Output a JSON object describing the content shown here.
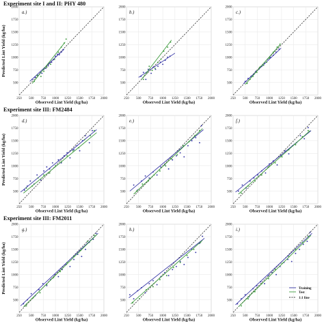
{
  "figure": {
    "row_titles": [
      "Experiment site I and II: PHY 480",
      "Experiment site III: FM2484",
      "Experiment site III: FM2011"
    ],
    "xlabel": "Observed Lint Yield (kg/ha)",
    "ylabel": "Predicted Lint Yield (kg/ha)",
    "legend": {
      "training": "Training",
      "test": "Test",
      "one_to_one": "1:1 line"
    }
  },
  "colors": {
    "training": "#3a3aa8",
    "test": "#3c9a3c",
    "one_to_one": "#333333",
    "grid": "#e6e6e6"
  },
  "chart_data": [
    {
      "type": "scatter",
      "label": "a.)",
      "xlim": [
        250,
        2000
      ],
      "ylim": [
        250,
        2000
      ],
      "ticks": [
        250,
        500,
        750,
        1000,
        1250,
        1500,
        1750,
        2000
      ],
      "series": [
        {
          "name": "Training",
          "x": [
            520,
            580,
            640,
            690,
            720,
            760,
            800,
            850,
            880,
            920,
            960,
            1000,
            1040,
            1080,
            1120,
            1160
          ],
          "y": [
            560,
            600,
            640,
            700,
            680,
            760,
            780,
            830,
            880,
            900,
            950,
            1020,
            1060,
            1050,
            1100,
            1150
          ],
          "fit": [
            [
              470,
              520
            ],
            [
              1180,
              1160
            ]
          ]
        },
        {
          "name": "Test",
          "x": [
            560,
            620,
            700,
            760,
            820,
            900,
            980,
            1060,
            1120,
            1180,
            1220
          ],
          "y": [
            520,
            640,
            620,
            720,
            800,
            860,
            960,
            1100,
            1200,
            1280,
            1360
          ],
          "fit": [
            [
              520,
              480
            ],
            [
              1200,
              1300
            ]
          ]
        }
      ]
    },
    {
      "type": "scatter",
      "label": "b.)",
      "xlim": [
        250,
        2000
      ],
      "ylim": [
        250,
        2000
      ],
      "ticks": [
        250,
        500,
        750,
        1000,
        1250,
        1500,
        1750,
        2000
      ],
      "series": [
        {
          "name": "Training",
          "x": [
            550,
            600,
            650,
            700,
            760,
            800,
            850,
            900,
            950,
            1000,
            1050,
            1100,
            1150
          ],
          "y": [
            620,
            700,
            560,
            760,
            680,
            800,
            760,
            820,
            900,
            860,
            940,
            1000,
            1020
          ],
          "fit": [
            [
              500,
              600
            ],
            [
              1250,
              1080
            ]
          ]
        },
        {
          "name": "Test",
          "x": [
            600,
            680,
            720,
            780,
            840,
            900,
            960,
            1020,
            1100,
            1160
          ],
          "y": [
            560,
            700,
            820,
            740,
            780,
            900,
            960,
            1120,
            1200,
            1300
          ],
          "fit": [
            [
              560,
              560
            ],
            [
              1180,
              1340
            ]
          ]
        }
      ]
    },
    {
      "type": "scatter",
      "label": "c.)",
      "xlim": [
        250,
        2000
      ],
      "ylim": [
        250,
        2000
      ],
      "ticks": [
        250,
        500,
        750,
        1000,
        1250,
        1500,
        1750,
        2000
      ],
      "series": [
        {
          "name": "Training",
          "x": [
            500,
            560,
            620,
            680,
            720,
            780,
            840,
            900,
            960,
            1020,
            1080,
            1140,
            1200
          ],
          "y": [
            520,
            580,
            620,
            660,
            720,
            760,
            820,
            880,
            960,
            1000,
            1040,
            1100,
            1160
          ],
          "fit": [
            [
              460,
              470
            ],
            [
              1240,
              1180
            ]
          ]
        },
        {
          "name": "Test",
          "x": [
            540,
            600,
            660,
            740,
            800,
            880,
            940,
            1000,
            1080,
            1160,
            1220
          ],
          "y": [
            480,
            560,
            620,
            700,
            800,
            840,
            900,
            980,
            1100,
            1200,
            1260
          ],
          "fit": [
            [
              500,
              460
            ],
            [
              1220,
              1250
            ]
          ]
        }
      ]
    },
    {
      "type": "scatter",
      "label": "d.)",
      "xlim": [
        250,
        2000
      ],
      "ylim": [
        250,
        2000
      ],
      "ticks": [
        250,
        500,
        750,
        1000,
        1250,
        1500,
        1750,
        2000
      ],
      "series": [
        {
          "name": "Training",
          "x": [
            360,
            420,
            480,
            560,
            620,
            700,
            760,
            820,
            880,
            940,
            1000,
            1060,
            1120,
            1180,
            1240,
            1300,
            1380,
            1440,
            1500,
            1560,
            1620,
            1700,
            1760
          ],
          "y": [
            520,
            600,
            700,
            640,
            820,
            720,
            900,
            980,
            940,
            1060,
            1000,
            1120,
            1060,
            1200,
            1260,
            1160,
            1320,
            1400,
            1300,
            1500,
            1600,
            1460,
            1700
          ],
          "fit": [
            [
              280,
              480
            ],
            [
              1850,
              1720
            ]
          ]
        },
        {
          "name": "Test",
          "x": [
            400,
            520,
            640,
            760,
            880,
            1000,
            1120,
            1240,
            1360,
            1480,
            1600,
            1720,
            1800
          ],
          "y": [
            560,
            600,
            760,
            820,
            860,
            1000,
            1080,
            1200,
            1300,
            1360,
            1520,
            1600,
            1700
          ],
          "fit": [
            [
              340,
              460
            ],
            [
              1850,
              1660
            ]
          ]
        }
      ]
    },
    {
      "type": "scatter",
      "label": "e.)",
      "xlim": [
        250,
        2000
      ],
      "ylim": [
        250,
        2000
      ],
      "ticks": [
        250,
        500,
        750,
        1000,
        1250,
        1500,
        1750,
        2000
      ],
      "series": [
        {
          "name": "Training",
          "x": [
            400,
            480,
            560,
            640,
            720,
            800,
            880,
            960,
            1040,
            1120,
            1200,
            1280,
            1360,
            1440,
            1520,
            1600,
            1680,
            1760,
            1800
          ],
          "y": [
            620,
            520,
            700,
            800,
            760,
            880,
            820,
            980,
            1020,
            940,
            1120,
            1200,
            1260,
            1180,
            1400,
            1500,
            1560,
            1460,
            1800
          ],
          "fit": [
            [
              320,
              500
            ],
            [
              1840,
              1720
            ]
          ]
        },
        {
          "name": "Test",
          "x": [
            460,
            580,
            700,
            820,
            940,
            1060,
            1180,
            1300,
            1420,
            1540,
            1660,
            1760
          ],
          "y": [
            500,
            640,
            700,
            820,
            900,
            1000,
            1140,
            1220,
            1400,
            1480,
            1600,
            1700
          ],
          "fit": [
            [
              400,
              440
            ],
            [
              1820,
              1740
            ]
          ]
        }
      ]
    },
    {
      "type": "scatter",
      "label": "f.)",
      "xlim": [
        250,
        2000
      ],
      "ylim": [
        250,
        2000
      ],
      "ticks": [
        250,
        500,
        750,
        1000,
        1250,
        1500,
        1750,
        2000
      ],
      "series": [
        {
          "name": "Training",
          "x": [
            360,
            440,
            520,
            600,
            680,
            760,
            840,
            920,
            1000,
            1080,
            1160,
            1240,
            1320,
            1400,
            1480,
            1560,
            1640,
            1720,
            1800
          ],
          "y": [
            500,
            620,
            560,
            700,
            760,
            820,
            900,
            860,
            1040,
            1100,
            1020,
            1200,
            1300,
            1240,
            1400,
            1460,
            1600,
            1540,
            1760
          ],
          "fit": [
            [
              300,
              480
            ],
            [
              1860,
              1700
            ]
          ]
        },
        {
          "name": "Test",
          "x": [
            420,
            560,
            700,
            840,
            980,
            1120,
            1260,
            1400,
            1540,
            1680,
            1800
          ],
          "y": [
            460,
            600,
            700,
            820,
            980,
            1060,
            1180,
            1320,
            1420,
            1580,
            1700
          ],
          "fit": [
            [
              360,
              440
            ],
            [
              1840,
              1700
            ]
          ]
        }
      ]
    },
    {
      "type": "scatter",
      "label": "g.)",
      "xlim": [
        250,
        2000
      ],
      "ylim": [
        250,
        2000
      ],
      "ticks": [
        250,
        500,
        750,
        1000,
        1250,
        1500,
        1750,
        2000
      ],
      "series": [
        {
          "name": "Training",
          "x": [
            340,
            420,
            500,
            580,
            660,
            740,
            820,
            900,
            980,
            1060,
            1140,
            1220,
            1300,
            1380,
            1460,
            1540,
            1620,
            1700,
            1780,
            1840
          ],
          "y": [
            420,
            500,
            620,
            580,
            700,
            820,
            780,
            900,
            1000,
            960,
            1100,
            1200,
            1160,
            1300,
            1400,
            1360,
            1500,
            1640,
            1700,
            1820
          ],
          "fit": [
            [
              280,
              380
            ],
            [
              1880,
              1820
            ]
          ]
        },
        {
          "name": "Test",
          "x": [
            400,
            540,
            680,
            820,
            960,
            1100,
            1240,
            1380,
            1520,
            1660,
            1800
          ],
          "y": [
            380,
            540,
            640,
            800,
            940,
            1060,
            1240,
            1360,
            1480,
            1660,
            1780
          ],
          "fit": [
            [
              340,
              360
            ],
            [
              1860,
              1800
            ]
          ]
        }
      ]
    },
    {
      "type": "scatter",
      "label": "h.)",
      "xlim": [
        250,
        2000
      ],
      "ylim": [
        250,
        2000
      ],
      "ticks": [
        250,
        500,
        750,
        1000,
        1250,
        1500,
        1750,
        2000
      ],
      "series": [
        {
          "name": "Training",
          "x": [
            320,
            400,
            480,
            560,
            640,
            720,
            800,
            880,
            960,
            1040,
            1120,
            1200,
            1280,
            1360,
            1440,
            1520,
            1600,
            1680,
            1760,
            1820
          ],
          "y": [
            600,
            520,
            680,
            740,
            640,
            820,
            880,
            800,
            960,
            1040,
            980,
            1100,
            1160,
            1260,
            1200,
            1340,
            1500,
            1440,
            1620,
            1760
          ],
          "fit": [
            [
              300,
              540
            ],
            [
              1860,
              1720
            ]
          ]
        },
        {
          "name": "Test",
          "x": [
            380,
            520,
            660,
            800,
            940,
            1080,
            1220,
            1360,
            1500,
            1640,
            1780
          ],
          "y": [
            440,
            520,
            700,
            760,
            900,
            980,
            1140,
            1240,
            1380,
            1500,
            1640
          ],
          "fit": [
            [
              340,
              420
            ],
            [
              1820,
              1680
            ]
          ]
        }
      ]
    },
    {
      "type": "scatter",
      "label": "i.)",
      "xlim": [
        250,
        2000
      ],
      "ylim": [
        250,
        2000
      ],
      "ticks": [
        250,
        500,
        750,
        1000,
        1250,
        1500,
        1750,
        2000
      ],
      "series": [
        {
          "name": "Training",
          "x": [
            340,
            420,
            500,
            580,
            660,
            740,
            820,
            900,
            980,
            1060,
            1140,
            1220,
            1300,
            1380,
            1460,
            1540,
            1620,
            1700,
            1780,
            1840
          ],
          "y": [
            420,
            520,
            600,
            560,
            720,
            780,
            860,
            820,
            980,
            1040,
            1000,
            1160,
            1240,
            1300,
            1260,
            1420,
            1500,
            1600,
            1660,
            1840
          ],
          "fit": [
            [
              300,
              400
            ],
            [
              1880,
              1820
            ]
          ]
        },
        {
          "name": "Test",
          "x": [
            420,
            560,
            700,
            840,
            980,
            1120,
            1260,
            1400,
            1540,
            1680,
            1800
          ],
          "y": [
            380,
            520,
            660,
            820,
            920,
            1100,
            1220,
            1360,
            1500,
            1640,
            1760
          ],
          "fit": [
            [
              360,
              360
            ],
            [
              1860,
              1780
            ]
          ]
        }
      ]
    }
  ]
}
